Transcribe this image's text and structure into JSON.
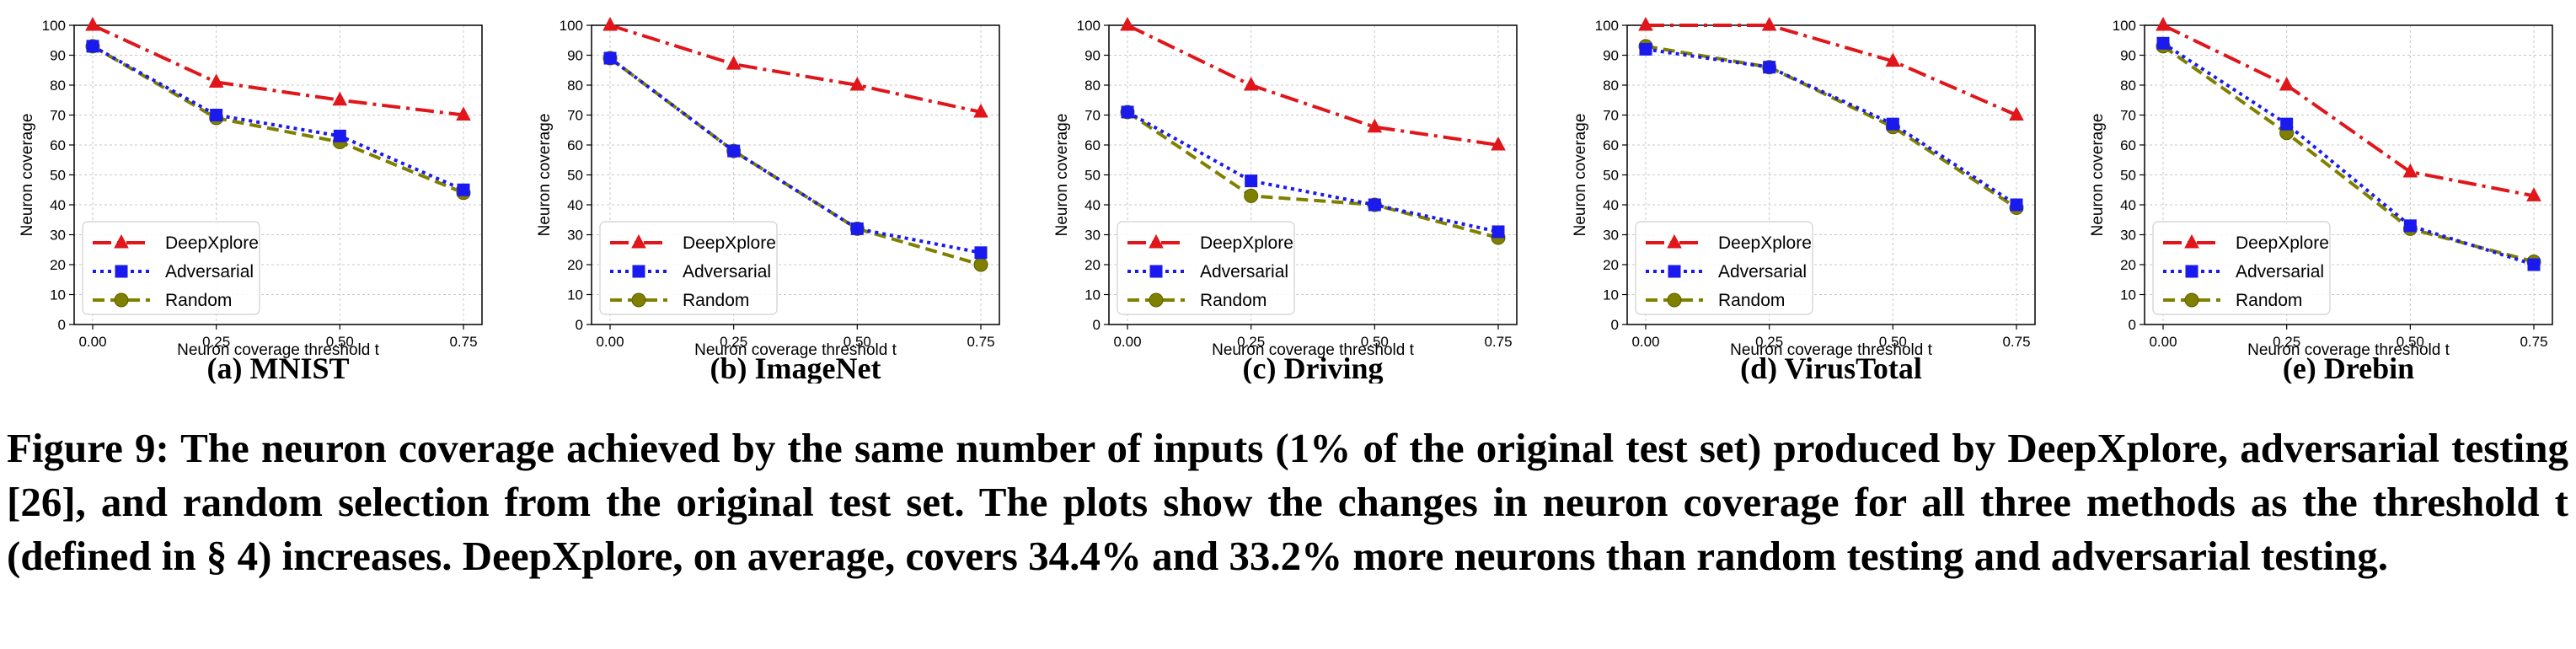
{
  "chart_data": [
    {
      "type": "line",
      "subcaption": "(a) MNIST",
      "xlabel": "Neuron coverage threshold t",
      "ylabel": "Neuron coverage",
      "x": [
        0.0,
        0.25,
        0.5,
        0.75
      ],
      "xticks": [
        "0.00",
        "0.25",
        "0.50",
        "0.75"
      ],
      "yticks": [
        0,
        10,
        20,
        30,
        40,
        50,
        60,
        70,
        80,
        90,
        100
      ],
      "ylim": [
        0,
        100
      ],
      "grid": true,
      "legend": "lower-left",
      "series": [
        {
          "name": "DeepXplore",
          "values": [
            100,
            81,
            75,
            70
          ]
        },
        {
          "name": "Adversarial",
          "values": [
            93,
            70,
            63,
            45
          ]
        },
        {
          "name": "Random",
          "values": [
            93,
            69,
            61,
            44
          ]
        }
      ]
    },
    {
      "type": "line",
      "subcaption": "(b) ImageNet",
      "xlabel": "Neuron coverage threshold t",
      "ylabel": "Neuron coverage",
      "x": [
        0.0,
        0.25,
        0.5,
        0.75
      ],
      "xticks": [
        "0.00",
        "0.25",
        "0.50",
        "0.75"
      ],
      "yticks": [
        0,
        10,
        20,
        30,
        40,
        50,
        60,
        70,
        80,
        90,
        100
      ],
      "ylim": [
        0,
        100
      ],
      "grid": true,
      "legend": "lower-left",
      "series": [
        {
          "name": "DeepXplore",
          "values": [
            100,
            87,
            80,
            71
          ]
        },
        {
          "name": "Adversarial",
          "values": [
            89,
            58,
            32,
            24
          ]
        },
        {
          "name": "Random",
          "values": [
            89,
            58,
            32,
            20
          ]
        }
      ]
    },
    {
      "type": "line",
      "subcaption": "(c) Driving",
      "xlabel": "Neuron coverage threshold t",
      "ylabel": "Neuron coverage",
      "x": [
        0.0,
        0.25,
        0.5,
        0.75
      ],
      "xticks": [
        "0.00",
        "0.25",
        "0.50",
        "0.75"
      ],
      "yticks": [
        0,
        10,
        20,
        30,
        40,
        50,
        60,
        70,
        80,
        90,
        100
      ],
      "ylim": [
        0,
        100
      ],
      "grid": true,
      "legend": "lower-left",
      "series": [
        {
          "name": "DeepXplore",
          "values": [
            100,
            80,
            66,
            60
          ]
        },
        {
          "name": "Adversarial",
          "values": [
            71,
            48,
            40,
            31
          ]
        },
        {
          "name": "Random",
          "values": [
            71,
            43,
            40,
            29
          ]
        }
      ]
    },
    {
      "type": "line",
      "subcaption": "(d) VirusTotal",
      "xlabel": "Neuron coverage threshold t",
      "ylabel": "Neuron coverage",
      "x": [
        0.0,
        0.25,
        0.5,
        0.75
      ],
      "xticks": [
        "0.00",
        "0.25",
        "0.50",
        "0.75"
      ],
      "yticks": [
        0,
        10,
        20,
        30,
        40,
        50,
        60,
        70,
        80,
        90,
        100
      ],
      "ylim": [
        0,
        100
      ],
      "grid": true,
      "legend": "lower-left",
      "series": [
        {
          "name": "DeepXplore",
          "values": [
            100,
            100,
            88,
            70
          ]
        },
        {
          "name": "Adversarial",
          "values": [
            92,
            86,
            67,
            40
          ]
        },
        {
          "name": "Random",
          "values": [
            93,
            86,
            66,
            39
          ]
        }
      ]
    },
    {
      "type": "line",
      "subcaption": "(e) Drebin",
      "xlabel": "Neuron coverage threshold t",
      "ylabel": "Neuron coverage",
      "x": [
        0.0,
        0.25,
        0.5,
        0.75
      ],
      "xticks": [
        "0.00",
        "0.25",
        "0.50",
        "0.75"
      ],
      "yticks": [
        0,
        10,
        20,
        30,
        40,
        50,
        60,
        70,
        80,
        90,
        100
      ],
      "ylim": [
        0,
        100
      ],
      "grid": true,
      "legend": "lower-left",
      "series": [
        {
          "name": "DeepXplore",
          "values": [
            100,
            80,
            51,
            43
          ]
        },
        {
          "name": "Adversarial",
          "values": [
            94,
            67,
            33,
            20
          ]
        },
        {
          "name": "Random",
          "values": [
            93,
            64,
            32,
            21
          ]
        }
      ]
    }
  ],
  "series_style": [
    {
      "color": "#e0161b",
      "dash": "22 7 4 7",
      "marker": "triangle"
    },
    {
      "color": "#1a1aee",
      "dash": "4 5",
      "marker": "square"
    },
    {
      "color": "#808000",
      "dash": "14 7",
      "marker": "circle"
    }
  ],
  "caption": "Figure 9: The neuron coverage achieved by the same number of inputs (1% of the original test set) produced by DeepXplore, adversarial testing [26], and random selection from the original test set. The plots show the changes in neuron coverage for all three methods as the threshold t (defined in § 4) increases. DeepXplore, on average, covers 34.4% and 33.2% more neurons than random testing and adversarial testing."
}
